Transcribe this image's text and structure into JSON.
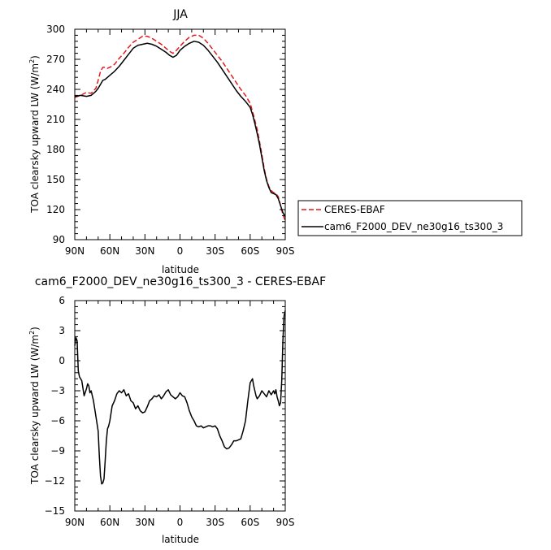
{
  "chart_data": [
    {
      "type": "line",
      "title": "JJA",
      "xlabel": "latitude",
      "ylabel": "TOA clearsky upward LW (W/m²)",
      "x_tick_values": [
        90,
        60,
        30,
        0,
        -30,
        -60,
        -90
      ],
      "x_tick_labels": [
        "90N",
        "60N",
        "30N",
        "0",
        "30S",
        "60S",
        "90S"
      ],
      "xlim": [
        90,
        -90
      ],
      "ylim": [
        90,
        300
      ],
      "y_ticks": [
        90,
        120,
        150,
        180,
        210,
        240,
        270,
        300
      ],
      "y_tick_labels": [
        "90",
        "120",
        "150",
        "180",
        "210",
        "240",
        "270",
        "300"
      ],
      "legend": {
        "placement": "right",
        "entries": [
          "CERES-EBAF",
          "cam6_F2000_DEV_ne30g16_ts300_3"
        ]
      },
      "series": [
        {
          "name": "CERES-EBAF",
          "color": "#e31a1c",
          "dash": "dashed",
          "x": [
            90,
            85,
            80,
            76,
            72,
            70,
            68,
            66,
            64,
            62,
            60,
            56,
            52,
            48,
            44,
            40,
            36,
            32,
            28,
            24,
            20,
            16,
            12,
            9,
            6,
            3,
            0,
            -4,
            -8,
            -12,
            -16,
            -20,
            -24,
            -28,
            -32,
            -36,
            -40,
            -44,
            -48,
            -52,
            -56,
            -60,
            -62,
            -64,
            -66,
            -68,
            -70,
            -72,
            -74,
            -76,
            -78,
            -80,
            -82,
            -84,
            -86,
            -88,
            -90
          ],
          "values": [
            232,
            234,
            237,
            236,
            241,
            249,
            258,
            262,
            262,
            261,
            262,
            265,
            271,
            276,
            282,
            287,
            290,
            293,
            293,
            291,
            288,
            285,
            281,
            278,
            276,
            279,
            283,
            288,
            292,
            294,
            294,
            291,
            286,
            280,
            274,
            268,
            261,
            254,
            247,
            240,
            234,
            226,
            218,
            209,
            200,
            188,
            175,
            161,
            150,
            143,
            139,
            137,
            136,
            133,
            124,
            115,
            109
          ]
        },
        {
          "name": "cam6_F2000_DEV_ne30g16_ts300_3",
          "color": "#000000",
          "dash": "solid",
          "x": [
            90,
            85,
            80,
            76,
            72,
            70,
            68,
            66,
            64,
            62,
            60,
            56,
            52,
            48,
            44,
            40,
            36,
            32,
            28,
            24,
            20,
            16,
            12,
            9,
            6,
            3,
            0,
            -4,
            -8,
            -12,
            -16,
            -20,
            -24,
            -28,
            -32,
            -36,
            -40,
            -44,
            -48,
            -52,
            -56,
            -60,
            -62,
            -64,
            -66,
            -68,
            -70,
            -72,
            -74,
            -76,
            -78,
            -80,
            -82,
            -84,
            -86,
            -88,
            -90
          ],
          "values": [
            233,
            234,
            233,
            234,
            238,
            241,
            245,
            249,
            250,
            252,
            254,
            258,
            263,
            269,
            275,
            281,
            284,
            285,
            286,
            285,
            283,
            280,
            277,
            274,
            272,
            274,
            279,
            283,
            286,
            288,
            287,
            284,
            279,
            273,
            267,
            260,
            253,
            246,
            239,
            233,
            228,
            222,
            215,
            206,
            196,
            185,
            172,
            159,
            149,
            142,
            137,
            136,
            135,
            131,
            124,
            117,
            113
          ]
        }
      ]
    },
    {
      "type": "line",
      "title": "cam6_F2000_DEV_ne30g16_ts300_3 - CERES-EBAF",
      "xlabel": "latitude",
      "ylabel": "TOA clearsky upward LW (W/m²)",
      "x_tick_values": [
        90,
        60,
        30,
        0,
        -30,
        -60,
        -90
      ],
      "x_tick_labels": [
        "90N",
        "60N",
        "30N",
        "0",
        "30S",
        "60S",
        "90S"
      ],
      "xlim": [
        90,
        -90
      ],
      "ylim": [
        -15,
        6
      ],
      "y_ticks": [
        -15,
        -12,
        -9,
        -6,
        -3,
        0,
        3,
        6
      ],
      "y_tick_labels": [
        "−15",
        "−12",
        "−9",
        "−6",
        "−3",
        "0",
        "3",
        "6"
      ],
      "series": [
        {
          "color": "#000000",
          "dash": "solid",
          "x": [
            90,
            89,
            88,
            87,
            86,
            84,
            82,
            80,
            79,
            78,
            77,
            76,
            74,
            72,
            70,
            69,
            68,
            67,
            66,
            65,
            64,
            63,
            62,
            61,
            60,
            58,
            56,
            54,
            52,
            50,
            48,
            46,
            44,
            42,
            40,
            38,
            36,
            34,
            32,
            30,
            28,
            26,
            24,
            22,
            20,
            18,
            16,
            14,
            12,
            10,
            8,
            6,
            4,
            2,
            0,
            -2,
            -4,
            -6,
            -8,
            -10,
            -12,
            -14,
            -16,
            -18,
            -20,
            -22,
            -24,
            -26,
            -28,
            -30,
            -32,
            -34,
            -36,
            -38,
            -40,
            -42,
            -44,
            -46,
            -48,
            -50,
            -52,
            -54,
            -56,
            -58,
            -60,
            -61,
            -62,
            -63,
            -64,
            -65,
            -66,
            -68,
            -70,
            -72,
            -74,
            -76,
            -78,
            -80,
            -81,
            -82,
            -83,
            -84,
            -85,
            -86,
            -87,
            -88,
            -89,
            -90
          ],
          "values": [
            1.5,
            2.3,
            2.0,
            -1.0,
            -1.6,
            -2.0,
            -3.5,
            -2.8,
            -2.3,
            -2.5,
            -3.2,
            -3.0,
            -4.0,
            -5.5,
            -7.0,
            -9.5,
            -11.5,
            -12.3,
            -12.2,
            -11.8,
            -10.0,
            -8.0,
            -6.8,
            -6.5,
            -6.0,
            -4.5,
            -4.0,
            -3.3,
            -3.0,
            -3.2,
            -2.9,
            -3.5,
            -3.3,
            -4.0,
            -4.2,
            -4.8,
            -4.5,
            -5.0,
            -5.2,
            -5.1,
            -4.6,
            -4.0,
            -3.8,
            -3.5,
            -3.6,
            -3.4,
            -3.8,
            -3.5,
            -3.1,
            -2.9,
            -3.4,
            -3.6,
            -3.8,
            -3.6,
            -3.2,
            -3.5,
            -3.6,
            -4.2,
            -5.0,
            -5.6,
            -6.0,
            -6.5,
            -6.6,
            -6.5,
            -6.7,
            -6.6,
            -6.5,
            -6.5,
            -6.6,
            -6.5,
            -6.8,
            -7.5,
            -8.0,
            -8.6,
            -8.8,
            -8.7,
            -8.4,
            -8.0,
            -8.0,
            -7.9,
            -7.8,
            -7.0,
            -6.0,
            -4.0,
            -2.2,
            -2.0,
            -1.8,
            -2.5,
            -3.0,
            -3.5,
            -3.8,
            -3.5,
            -3.0,
            -3.3,
            -3.6,
            -3.0,
            -3.4,
            -3.0,
            -3.3,
            -2.9,
            -3.6,
            -4.0,
            -4.5,
            -4.2,
            -2.0,
            2.0,
            4.5,
            5.0
          ]
        }
      ]
    }
  ]
}
